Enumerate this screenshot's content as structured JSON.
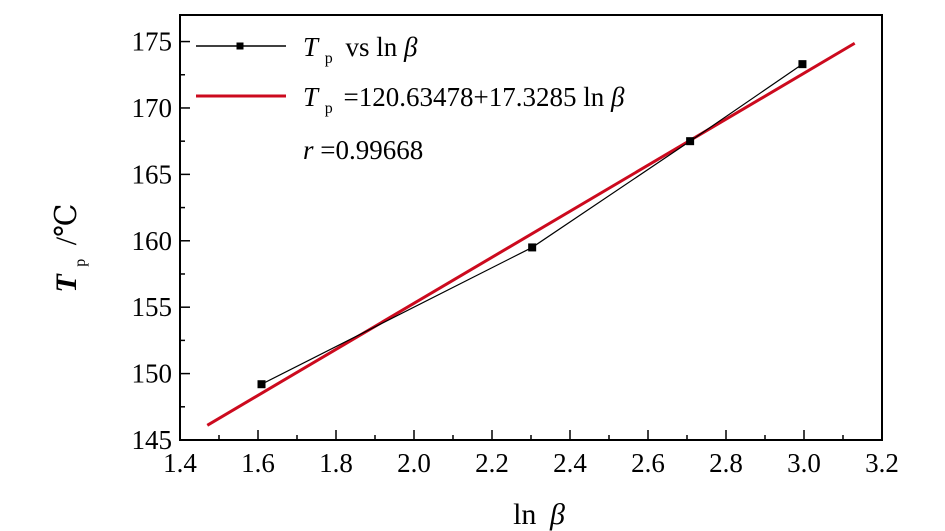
{
  "chart_data": {
    "type": "scatter",
    "xlabel": {
      "main": "ln",
      "symbol": "β"
    },
    "ylabel": {
      "var": "T",
      "sub": "p",
      "unit": "/℃"
    },
    "xlim": [
      1.4,
      3.2
    ],
    "ylim": [
      145,
      177
    ],
    "xticks": [
      1.4,
      1.6,
      1.8,
      2.0,
      2.2,
      2.4,
      2.6,
      2.8,
      3.0,
      3.2
    ],
    "xtick_labels": [
      "1.4",
      "1.6",
      "1.8",
      "2.0",
      "2.2",
      "2.4",
      "2.6",
      "2.8",
      "3.0",
      "3.2"
    ],
    "yticks": [
      145,
      150,
      155,
      160,
      165,
      170,
      175
    ],
    "ytick_labels": [
      "145",
      "150",
      "155",
      "160",
      "165",
      "170",
      "175"
    ],
    "legend_position": "top-left",
    "series": [
      {
        "kind": "data",
        "legend": {
          "var": "T",
          "sub": "p",
          "rest": "vs ln ",
          "symbol": "β"
        },
        "color": "#000000",
        "x": [
          1.609,
          2.303,
          2.708,
          2.996
        ],
        "y": [
          149.2,
          159.5,
          167.5,
          173.3
        ]
      },
      {
        "kind": "fit",
        "legend": {
          "var": "T",
          "sub": "p",
          "rest": "=120.63478+17.3285 ln ",
          "symbol": "β"
        },
        "color": "#cc0a1e",
        "intercept": 120.63478,
        "slope": 17.3285,
        "x_range": [
          1.47,
          3.13
        ]
      }
    ],
    "annotation": {
      "var": "r",
      "rest": "=0.99668"
    }
  }
}
